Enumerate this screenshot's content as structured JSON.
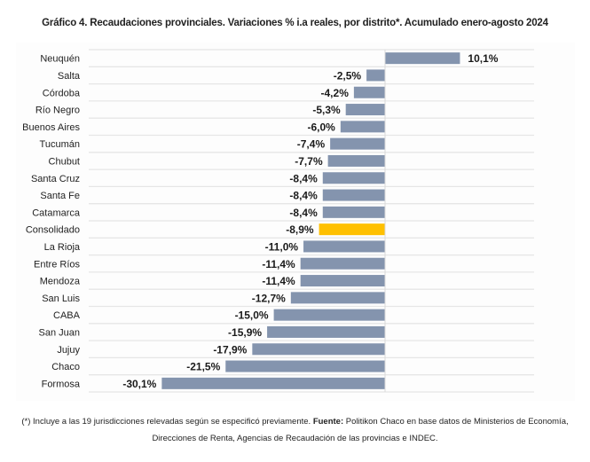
{
  "title": "Gráfico 4. Recaudaciones provinciales. Variaciones % i.a reales, por distrito*. Acumulado enero-agosto 2024",
  "footnote": {
    "note": "(*) Incluye a las 19 jurisdicciones relevadas según se especificó previamente. ",
    "source_label": "Fuente:",
    "source_text": " Politikon Chaco en base datos de Ministerios de Economía, Direcciones de Renta, Agencias de Recaudación de las provincias e INDEC."
  },
  "colors": {
    "bar": "#8494ae",
    "highlight": "#ffc000",
    "grid": "#e6e6e6",
    "axis": "#d9d9d9"
  },
  "chart_data": {
    "type": "bar",
    "orientation": "horizontal",
    "title": "Gráfico 4. Recaudaciones provinciales. Variaciones % i.a reales, por distrito*. Acumulado enero-agosto 2024",
    "xlabel": "",
    "ylabel": "",
    "unit": "%",
    "xlim": [
      -30.1,
      10.1
    ],
    "grid": true,
    "legend": "none",
    "highlighted_category": "Consolidado",
    "categories": [
      "Neuquén",
      "Salta",
      "Córdoba",
      "Río Negro",
      "Buenos Aires",
      "Tucumán",
      "Chubut",
      "Santa Cruz",
      "Santa Fe",
      "Catamarca",
      "Consolidado",
      "La Rioja",
      "Entre Ríos",
      "Mendoza",
      "San Luis",
      "CABA",
      "San Juan",
      "Jujuy",
      "Chaco",
      "Formosa"
    ],
    "values": [
      10.1,
      -2.5,
      -4.2,
      -5.3,
      -6.0,
      -7.4,
      -7.7,
      -8.4,
      -8.4,
      -8.4,
      -8.9,
      -11.0,
      -11.4,
      -11.4,
      -12.7,
      -15.0,
      -15.9,
      -17.9,
      -21.5,
      -30.1
    ],
    "data_labels": [
      "10,1%",
      "-2,5%",
      "-4,2%",
      "-5,3%",
      "-6,0%",
      "-7,4%",
      "-7,7%",
      "-8,4%",
      "-8,4%",
      "-8,4%",
      "-8,9%",
      "-11,0%",
      "-11,4%",
      "-11,4%",
      "-12,7%",
      "-15,0%",
      "-15,9%",
      "-17,9%",
      "-21,5%",
      "-30,1%"
    ]
  }
}
